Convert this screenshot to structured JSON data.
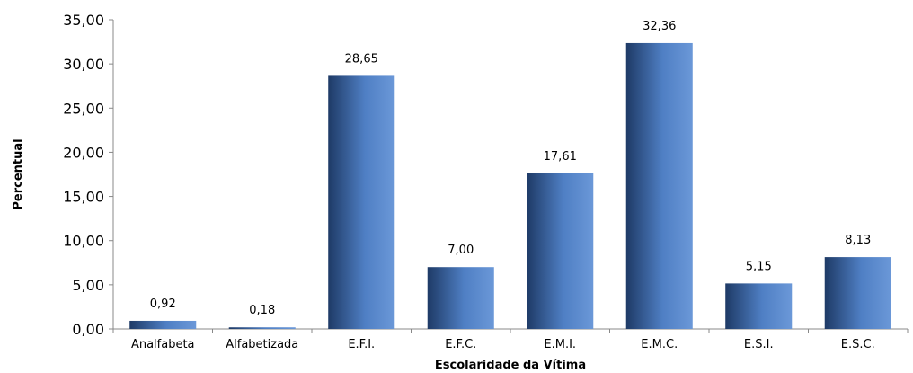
{
  "chart_data": {
    "type": "bar",
    "categories": [
      "Analfabeta",
      "Alfabetizada",
      "E.F.I.",
      "E.F.C.",
      "E.M.I.",
      "E.M.C.",
      "E.S.I.",
      "E.S.C."
    ],
    "values": [
      0.92,
      0.18,
      28.65,
      7.0,
      17.61,
      32.36,
      5.15,
      8.13
    ],
    "value_labels": [
      "0,92",
      "0,18",
      "28,65",
      "7,00",
      "17,61",
      "32,36",
      "5,15",
      "8,13"
    ],
    "xlabel": "Escolaridade da Vítima",
    "ylabel": "Percentual",
    "ylim": [
      0,
      35
    ],
    "yticks": [
      "0,00",
      "5,00",
      "10,00",
      "15,00",
      "20,00",
      "25,00",
      "30,00",
      "35,00"
    ],
    "grid": false,
    "legend": "none",
    "colors": {
      "bar_dark": "#1e3a66",
      "bar_mid": "#4f7fc4",
      "bar_light": "#6b98d8"
    }
  }
}
